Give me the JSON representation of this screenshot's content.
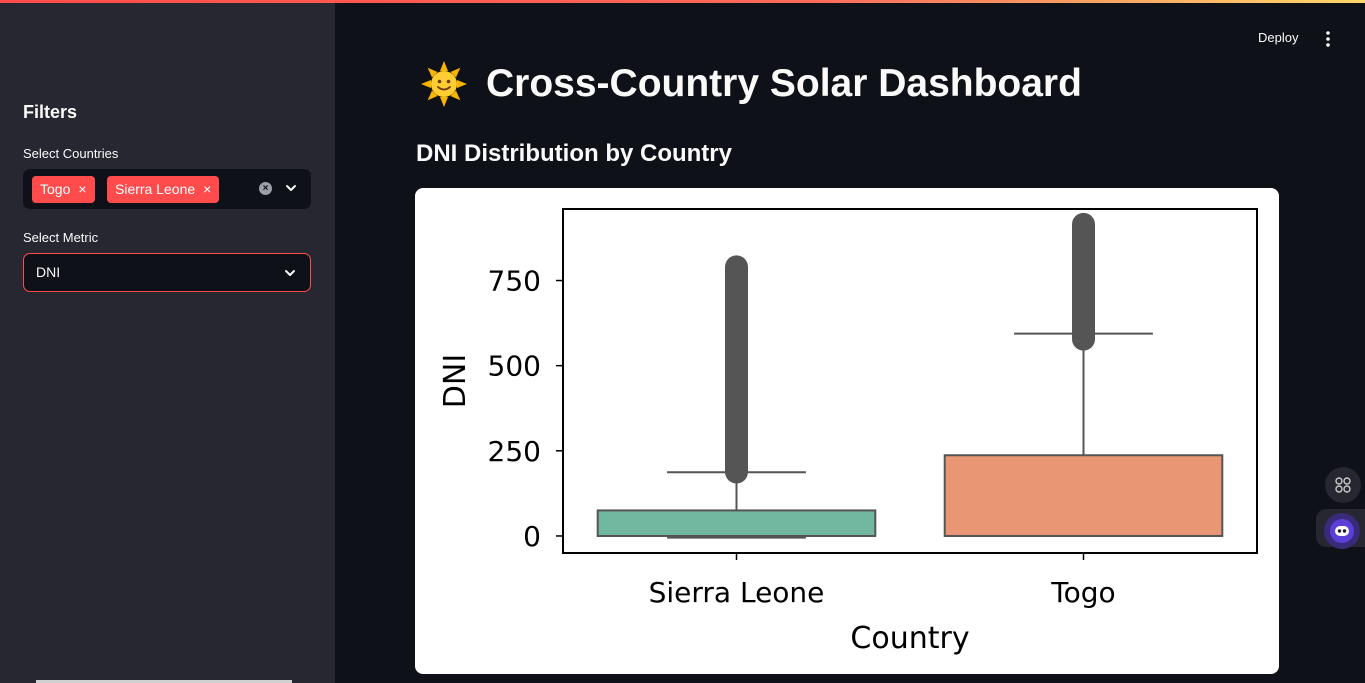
{
  "app": {
    "deploy_label": "Deploy",
    "title": "Cross-Country Solar Dashboard",
    "title_icon": "sun-emoji-icon"
  },
  "sidebar": {
    "heading": "Filters",
    "countries_label": "Select Countries",
    "selected_countries": [
      "Togo",
      "Sierra Leone"
    ],
    "chip_remove_glyph": "×",
    "metric_label": "Select Metric",
    "metric_value": "DNI"
  },
  "main": {
    "subheading": "DNI Distribution by Country"
  },
  "colors": {
    "accent": "#ff4b4b",
    "sierra_leone_box": "#72b8a1",
    "togo_box": "#e99675",
    "whisker": "#555555"
  },
  "chart_data": {
    "type": "box",
    "xlabel": "Country",
    "ylabel": "DNI",
    "categories": [
      "Sierra Leone",
      "Togo"
    ],
    "ylim": [
      -50,
      960
    ],
    "yticks": [
      0,
      250,
      500,
      750
    ],
    "series": [
      {
        "category": "Sierra Leone",
        "min": -5,
        "q1": 0,
        "median": 0,
        "q3": 75,
        "whisker_high": 187,
        "outliers_from": 188,
        "outliers_to": 790
      },
      {
        "category": "Togo",
        "min": 0,
        "q1": 0,
        "median": 0,
        "q3": 237,
        "whisker_high": 594,
        "outliers_from": 578,
        "outliers_to": 915
      }
    ],
    "grid": false
  }
}
